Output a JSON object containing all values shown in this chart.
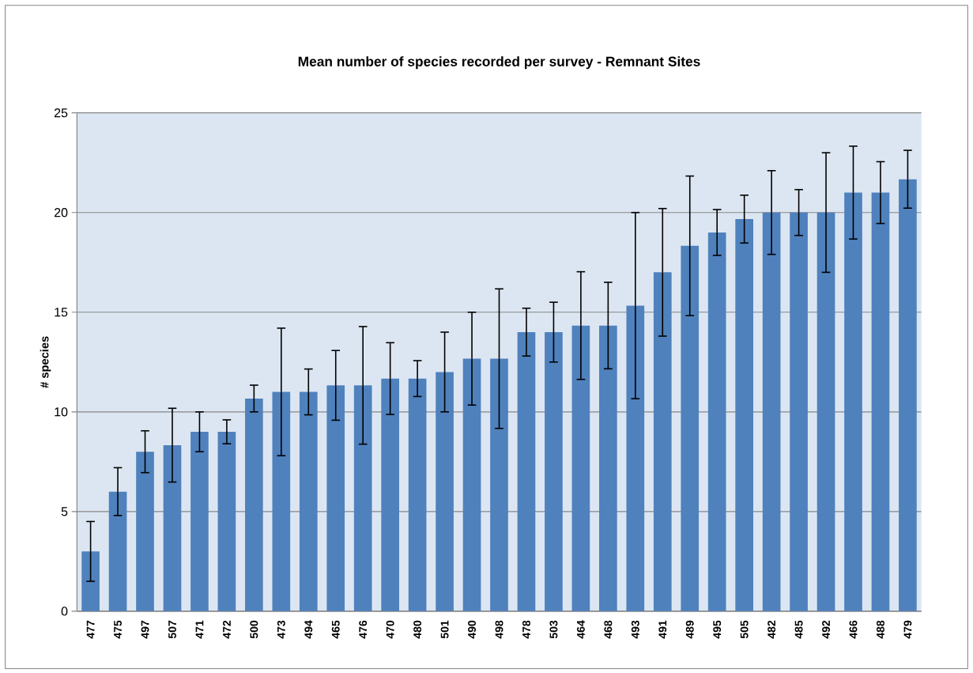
{
  "chart_data": {
    "type": "bar",
    "title": "Mean  number of species recorded per survey - Remnant Sites",
    "ylabel": "# species",
    "categories": [
      "477",
      "475",
      "497",
      "507",
      "471",
      "472",
      "500",
      "473",
      "494",
      "465",
      "476",
      "470",
      "480",
      "501",
      "490",
      "498",
      "478",
      "503",
      "464",
      "468",
      "493",
      "491",
      "489",
      "495",
      "505",
      "482",
      "485",
      "492",
      "466",
      "488",
      "479"
    ],
    "values": [
      3,
      6,
      8,
      8.33,
      9,
      9,
      10.67,
      11,
      11,
      11.33,
      11.33,
      11.67,
      11.67,
      12,
      12.67,
      12.67,
      14,
      14,
      14.33,
      14.33,
      15.33,
      17,
      18.33,
      19,
      19.67,
      20,
      20,
      20,
      21,
      21,
      21.67
    ],
    "errors": [
      1.5,
      1.2,
      1.05,
      1.85,
      1,
      0.6,
      0.67,
      3.2,
      1.15,
      1.75,
      2.95,
      1.8,
      0.9,
      2,
      2.33,
      3.5,
      1.2,
      1.5,
      2.7,
      2.17,
      4.67,
      3.2,
      3.5,
      1.15,
      1.2,
      2.1,
      1.15,
      3,
      2.33,
      1.55,
      1.45
    ],
    "color": "#4f81bd",
    "ylim": [
      0,
      25
    ],
    "yticks": [
      0,
      5,
      10,
      15,
      20,
      25
    ],
    "grid": "y"
  }
}
